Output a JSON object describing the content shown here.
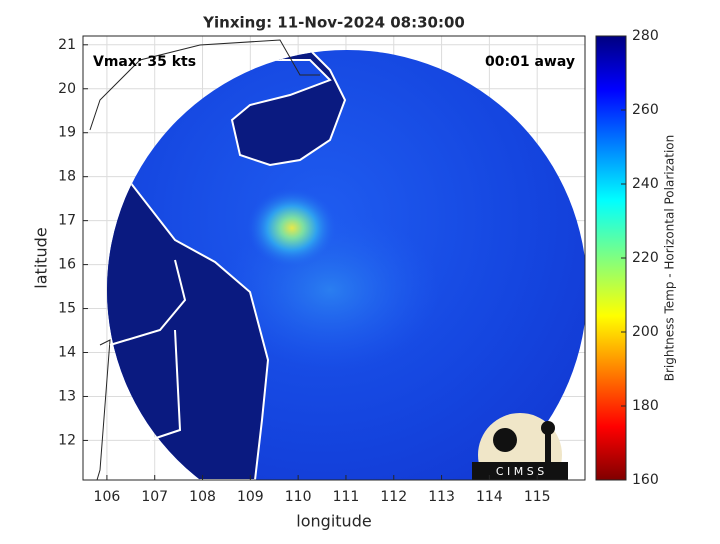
{
  "chart_data": {
    "type": "image",
    "title": "Yinxing: 11-Nov-2024 08:30:00",
    "annotations": [
      "Vmax: 35 kts",
      "00:01 away"
    ],
    "x_label": "longitude",
    "y_label": "latitude",
    "xlim": [
      105.5,
      116
    ],
    "xticks": [
      106,
      107,
      108,
      109,
      110,
      111,
      112,
      113,
      114,
      115
    ],
    "ylim": [
      11.1,
      21.2
    ],
    "yticks": [
      12,
      13,
      14,
      15,
      16,
      17,
      18,
      19,
      20,
      21
    ],
    "grid": true,
    "colorbar": {
      "label": "Brightness Temp - Horizontal Polarization",
      "lim": [
        160,
        280
      ],
      "ticks": [
        160,
        180,
        200,
        220,
        240,
        260,
        280
      ]
    },
    "logo": "C I M S S"
  }
}
